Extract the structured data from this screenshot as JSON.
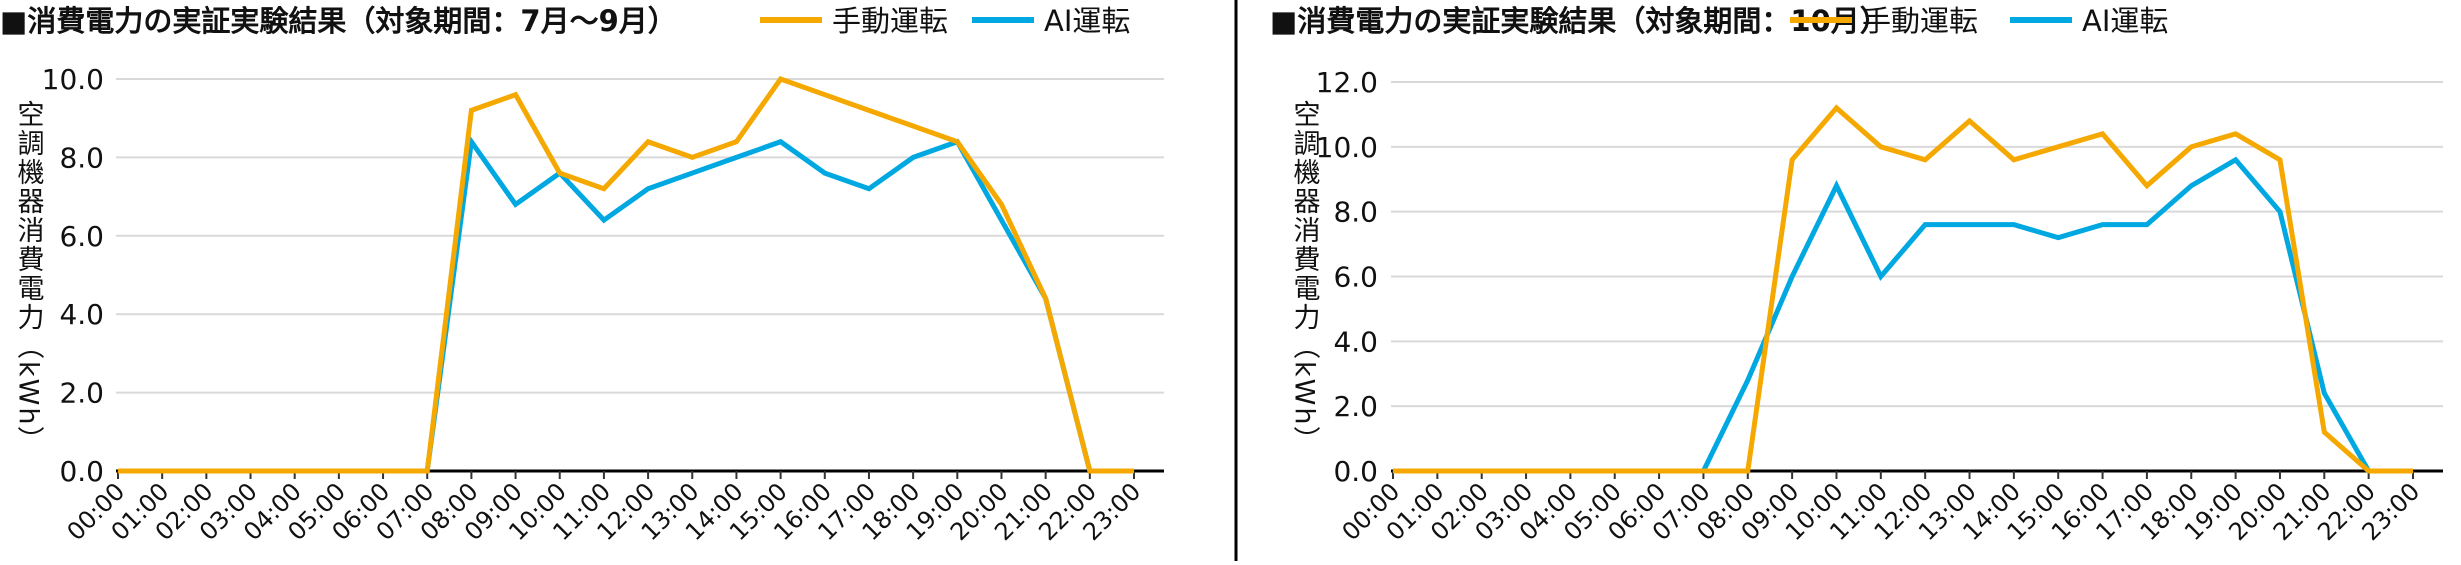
{
  "colors": {
    "manual": "#f5a800",
    "ai": "#00a8e2",
    "grid": "#d9d9d9",
    "axis": "#000000"
  },
  "chart_data": [
    {
      "type": "line",
      "title": "■消費電力の実証実験結果（対象期間：7月〜9月）",
      "ylabel": "空調機器消費電力（kWh）",
      "xlabel": "",
      "ylim": [
        0,
        10
      ],
      "yticks": [
        "0.0",
        "2.0",
        "4.0",
        "6.0",
        "8.0",
        "10.0"
      ],
      "grid": true,
      "legend_placement": "top-right",
      "categories": [
        "00:00",
        "01:00",
        "02:00",
        "03:00",
        "04:00",
        "05:00",
        "06:00",
        "07:00",
        "08:00",
        "09:00",
        "10:00",
        "11:00",
        "12:00",
        "13:00",
        "14:00",
        "15:00",
        "16:00",
        "17:00",
        "18:00",
        "19:00",
        "20:00",
        "21:00",
        "22:00",
        "23:00"
      ],
      "series": [
        {
          "name": "手動運転",
          "color": "#f5a800",
          "values": [
            0,
            0,
            0,
            0,
            0,
            0,
            0,
            0,
            9.2,
            9.6,
            7.6,
            7.2,
            8.4,
            8.0,
            8.4,
            10.0,
            9.6,
            9.2,
            8.8,
            8.4,
            6.8,
            4.4,
            0,
            0
          ]
        },
        {
          "name": "AI運転",
          "color": "#00a8e2",
          "values": [
            0,
            0,
            0,
            0,
            0,
            0,
            0,
            0,
            8.4,
            6.8,
            7.6,
            6.4,
            7.2,
            7.6,
            8.0,
            8.4,
            7.6,
            7.2,
            8.0,
            8.4,
            6.4,
            4.4,
            0,
            0
          ]
        }
      ]
    },
    {
      "type": "line",
      "title": "■消費電力の実証実験結果（対象期間：10月）",
      "ylabel": "空調機器消費電力（kWh）",
      "xlabel": "",
      "ylim": [
        0,
        12
      ],
      "yticks": [
        "0.0",
        "2.0",
        "4.0",
        "6.0",
        "8.0",
        "10.0",
        "12.0"
      ],
      "grid": true,
      "legend_placement": "top-right",
      "categories": [
        "00:00",
        "01:00",
        "02:00",
        "03:00",
        "04:00",
        "05:00",
        "06:00",
        "07:00",
        "08:00",
        "09:00",
        "10:00",
        "11:00",
        "12:00",
        "13:00",
        "14:00",
        "15:00",
        "16:00",
        "17:00",
        "18:00",
        "19:00",
        "20:00",
        "21:00",
        "22:00",
        "23:00"
      ],
      "series": [
        {
          "name": "手動運転",
          "color": "#f5a800",
          "values": [
            0,
            0,
            0,
            0,
            0,
            0,
            0,
            0,
            0,
            9.6,
            11.2,
            10.0,
            9.6,
            10.8,
            9.6,
            10.0,
            10.4,
            8.8,
            10.0,
            10.4,
            9.6,
            1.2,
            0,
            0
          ]
        },
        {
          "name": "AI運転",
          "color": "#00a8e2",
          "values": [
            0,
            0,
            0,
            0,
            0,
            0,
            0,
            0,
            2.8,
            6.0,
            8.8,
            6.0,
            7.6,
            7.6,
            7.6,
            7.2,
            7.6,
            7.6,
            8.8,
            9.6,
            8.0,
            2.4,
            0,
            0
          ]
        }
      ]
    }
  ]
}
